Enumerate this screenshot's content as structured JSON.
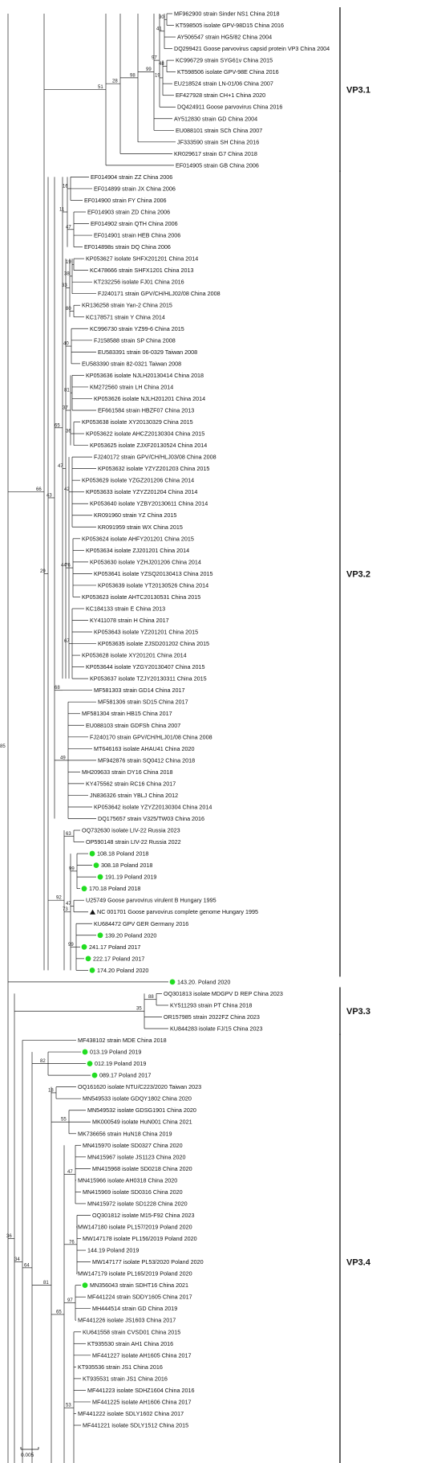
{
  "tree": {
    "tips": [
      "MF962900 strain Sinder NS1 China 2018",
      "KT598505 isolate GPV-98D15 China 2016",
      "AY506547 strain HG5/82 China 2004",
      "DQ299421 Goose parvovirus capsid protein VP3 China 2004",
      "KC996729 strain SYG61v China 2015",
      "KT598506 isolate GPV-98E China 2016",
      "EU218524 strain LN-01/06 China 2007",
      "EF427928 strain CH+1 China 2020",
      "DQ424911 Goose parvovirus China 2016",
      "AY512830 strain GD China 2004",
      "EU088101 strain SCh China 2007",
      "JF333590 strain SH China 2016",
      "KR029617 strain G7 China 2018",
      "EF014905 strain GB China 2006",
      "EF014904 strain ZZ China 2006",
      "EF014899 strain JX China 2006",
      "EF014900 strain FY China 2006",
      "EF014903 strain ZD China 2006",
      "EF014902 strain QTH China 2006",
      "EF014901 strain HEB China 2006",
      "EF014898s strain DQ China 2006",
      "KP053627 isolate SHFX201201 China 2014",
      "KC478666 strain SHFX1201 China 2013",
      "KT232256 isolate FJ01 China 2016",
      "FJ240171 strain GPV/CH/HLJ02/08 China 2008",
      "KR136258 strain Yan-2 China 2015",
      "KC178571 strain Y China 2014",
      "KC996730 strain YZ99-6 China 2015",
      "FJ158588 strain SP China 2008",
      "EU583391 strain 06-0329 Taiwan 2008",
      "EU583390 strain 82-0321 Taiwan 2008",
      "KP053636 isolate NJLH20130414 China 2018",
      "KM272560 strain LH China 2014",
      "KP053626 isolate NJLH201201 China 2014",
      "EF661584 strain HBZF07 China 2013",
      "KP053638 isolate XY20130329 China 2015",
      "KP053622 isolate AHCZ20130304 China 2015",
      "KP053625 isolate ZJXF20130524 China 2014",
      "FJ240172 strain GPV/CH/HLJ03/08 China 2008",
      "KP053632 isolate YZYZ201203 China 2015",
      "KP053629 isolate YZGZ201206 China 2014",
      "KP053633 isolate YZYZ201204 China 2014",
      "KP053640 isolate YZBY20130611 China 2014",
      "KR091960 strain YZ China 2015",
      "KR091959 strain WX China 2015",
      "KP053624 isolate AHFY201201 China 2015",
      "KP053634 isolate ZJ201201 China 2014",
      "KP053630 isolate YZHJ201206 China 2014",
      "KP053641 isolate YZSQ20130413 China 2015",
      "KP053639 isolate YT20130526 China 2014",
      "KP053623 isolate AHTC20130531 China 2015",
      "KC184133 strain E China 2013",
      "KY411078 strain H China 2017",
      "KP053643 isolate YZ201201 China 2015",
      "KP053635 isolate ZJSD201202 China 2015",
      "KP053628 isolate XY201201 China 2014",
      "KP053644 isolate YZGY20130407 China 2015",
      "KP053637 isolate TZJY20130311 China 2015",
      "MF581303 strain GD14 China 2017",
      "MF581306 strain SD15 China 2017",
      "MF581304 strain HB15 China 2017",
      "EU088103 strain GDFSh China 2007",
      "FJ240170 strain GPV/CH/HLJ01/08 China 2008",
      "MT646163 isolate AHAU41 China 2020",
      "MF942876 strain SQ0412 China 2018",
      "MH209633 strain DY16 China 2018",
      "KY475562 strain RC16 China 2017",
      "JN836326 strain YBLJ China 2012",
      "KP053642 isolate YZYZ20130304 China 2014",
      "DQ175657 strain V325/TW03 China 2016",
      "OQ732630 isolate LIV-22 Russia 2023",
      "OP590148 strain LIV-22 Russia 2022",
      "108.18 Poland 2018",
      "308.18 Poland 2018",
      "191.19 Poland 2019",
      "170.18 Poland 2018",
      "U25749 Goose parvovirus virulent B Hungary 1995",
      "NC 001701 Goose parvovirus complete genome Hungary 1995",
      "KU684472 GPV GER Germany 2016",
      "139.20 Poland 2020",
      "241.17 Poland 2017",
      "222.17 Poland 2017",
      "174.20 Poland 2020",
      "143.20. Poland 2020",
      "OQ301813 isolate MDGPV D REP China 2023",
      "KY511293 strain PT China 2018",
      "OR157985 strain 2022FZ China 2023",
      "KU844283 isolate FJ/15 China 2023",
      "MF438102 strain MDE China 2018",
      "013.19 Poland 2019",
      "012.19 Poland 2019",
      "089.17 Poland 2017",
      "OQ161620 isolate NTU/C223/2020 Taiwan 2023",
      "MN549533 isolate GDQY1802 China 2020",
      "MN549532 isolate GDSG1901 China 2020",
      "MK000549 isolate HuN001 China 2021",
      "MK736656 strain HuN18 China 2019",
      "MN415970 isolate SD0327 China 2020",
      "MN415967 isolate JS1123 China 2020",
      "MN415968 isolate SD0218 China 2020",
      "MN415966 isolate AH0318 China 2020",
      "MN415969 isolate SD0316 China 2020",
      "MN415972 isolate SD1228 China 2020",
      "OQ301812 isolate M15-F92 China 2023",
      "MW147180 isolate PL157/2019 Poland 2020",
      "MW147178 isolate PL156/2019 Poland 2020",
      "144.19 Poland 2019",
      "MW147177 isolate PL53/2020 Poland 2020",
      "MW147179 isolate PL165/2019 Poland 2020",
      "MN356043 strain SDHT16 China 2021",
      "MF441224 strain SDDY1605 China 2017",
      "MH444514 strain GD China 2019",
      "MF441226 isolate JS1603 China 2017",
      "KU641558 strain CVSD01 China 2015",
      "KT935530 strain AH1 China 2016",
      "MF441227 isolate AH1605 China 2017",
      "KT935536 strain JS1 China 2016",
      "KT935531 strain JS1 China 2016",
      "MF441223 isolate SDHZ1604 China 2016",
      "MF441225 isolate AH1606 China 2017",
      "MF441222 isolate SDLY1602 China 2017",
      "MF441221 isolate SDLY1512 China 2015"
    ],
    "marked_green": [
      72,
      73,
      74,
      75,
      79,
      80,
      81,
      82,
      83,
      89,
      90,
      91,
      109
    ],
    "marked_triangle": [
      77
    ],
    "clades": [
      {
        "label": "VP3.1",
        "first": 0,
        "last": 13
      },
      {
        "label": "VP3.2",
        "first": 14,
        "last": 82
      },
      {
        "label": "VP3.3",
        "first": 84,
        "last": 87
      },
      {
        "label": "VP3.4",
        "first": 88,
        "last": 126
      }
    ],
    "bootstraps": [
      "30",
      "41",
      "48",
      "19",
      "97",
      "99",
      "98",
      "28",
      "51",
      "16",
      "47",
      "11",
      "19",
      "38",
      "80",
      "33",
      "40",
      "81",
      "36",
      "37",
      "42",
      "76",
      "67",
      "44",
      "47",
      "65",
      "68",
      "49",
      "43",
      "63",
      "99",
      "47",
      "99",
      "73",
      "92",
      "29",
      "66",
      "88",
      "35",
      "82",
      "18",
      "55",
      "47",
      "76",
      "97",
      "53",
      "65",
      "81",
      "64",
      "34",
      "36",
      "85",
      "71",
      "31",
      "35",
      "57",
      "96",
      "51",
      "99",
      "99",
      "75",
      "84",
      "23",
      "26",
      "28",
      "31",
      "79",
      "60",
      "93",
      "100",
      "87",
      "94",
      "81",
      "45",
      "78",
      "97",
      "30",
      "47",
      "43",
      "62",
      "21",
      "94",
      "38",
      "83",
      "99",
      "46",
      "87",
      "31",
      "62",
      "30",
      "37"
    ],
    "scale_label": "0.005"
  }
}
